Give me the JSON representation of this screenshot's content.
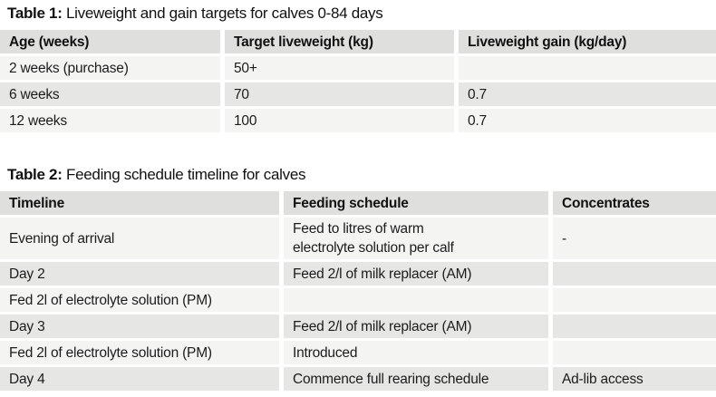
{
  "table1": {
    "title_label": "Table 1:",
    "title_text": "Liveweight and gain targets for calves 0-84 days",
    "columns": [
      "Age (weeks)",
      "Target liveweight (kg)",
      "Liveweight gain (kg/day)"
    ],
    "rows": [
      {
        "cells": [
          "2 weeks (purchase)",
          "50+",
          ""
        ]
      },
      {
        "cells": [
          "6 weeks",
          "70",
          "0.7"
        ]
      },
      {
        "cells": [
          "12 weeks",
          "100",
          "0.7"
        ]
      }
    ]
  },
  "table2": {
    "title_label": "Table 2:",
    "title_text": "Feeding schedule timeline for calves",
    "columns": [
      "Timeline",
      "Feeding schedule",
      "Concentrates"
    ],
    "rows": [
      {
        "cells": [
          "Evening of arrival",
          "Feed to litres of warm\nelectrolyte solution per calf",
          "-"
        ]
      },
      {
        "cells": [
          "Day 2",
          "Feed 2/l of milk replacer (AM)",
          ""
        ]
      },
      {
        "cells": [
          "Fed 2l of electrolyte solution (PM)",
          "",
          ""
        ]
      },
      {
        "cells": [
          "Day 3",
          "Feed 2/l of milk replacer (AM)",
          ""
        ]
      },
      {
        "cells": [
          "Fed 2l of electrolyte solution (PM)",
          "Introduced",
          ""
        ]
      },
      {
        "cells": [
          "Day 4",
          "Commence full rearing schedule",
          "Ad-lib access"
        ]
      }
    ]
  },
  "colors": {
    "header_bg": "#dfdfdd",
    "row_dark": "#e6e6e4",
    "row_light": "#f4f4f2",
    "text": "#1c1c1c"
  }
}
